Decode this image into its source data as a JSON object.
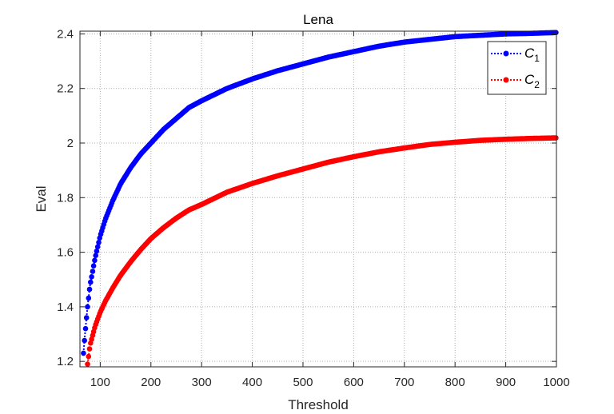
{
  "chart_data": {
    "type": "line",
    "title": "Lena",
    "xlabel": "Threshold",
    "ylabel": "Eval",
    "xlim": [
      60,
      1000
    ],
    "ylim": [
      1.18,
      2.41
    ],
    "xticks": [
      100,
      200,
      300,
      400,
      500,
      600,
      700,
      800,
      900,
      1000
    ],
    "yticks": [
      1.2,
      1.4,
      1.6,
      1.8,
      2.0,
      2.2,
      2.4
    ],
    "xtick_labels": [
      "100",
      "200",
      "300",
      "400",
      "500",
      "600",
      "700",
      "800",
      "900",
      "1000"
    ],
    "ytick_labels": [
      "1.2",
      "1.4",
      "1.6",
      "1.8",
      "2",
      "2.2",
      "2.4"
    ],
    "grid": true,
    "legend_position": "top-right",
    "series": [
      {
        "name": "C",
        "subscript": "1",
        "color": "#0000ff",
        "x": [
          67,
          70,
          75,
          80,
          90,
          100,
          110,
          125,
          140,
          160,
          180,
          200,
          225,
          250,
          275,
          300,
          350,
          400,
          450,
          500,
          550,
          600,
          650,
          700,
          750,
          800,
          850,
          900,
          950,
          1000
        ],
        "y": [
          1.23,
          1.3,
          1.4,
          1.48,
          1.58,
          1.66,
          1.72,
          1.79,
          1.85,
          1.91,
          1.96,
          2.0,
          2.05,
          2.09,
          2.13,
          2.155,
          2.2,
          2.235,
          2.265,
          2.29,
          2.315,
          2.335,
          2.355,
          2.37,
          2.38,
          2.39,
          2.395,
          2.4,
          2.402,
          2.405
        ]
      },
      {
        "name": "C",
        "subscript": "2",
        "color": "#ff0000",
        "x": [
          75,
          80,
          90,
          100,
          110,
          125,
          140,
          160,
          180,
          200,
          225,
          250,
          275,
          300,
          350,
          400,
          450,
          500,
          550,
          600,
          650,
          700,
          750,
          800,
          850,
          900,
          950,
          1000
        ],
        "y": [
          1.19,
          1.26,
          1.33,
          1.38,
          1.42,
          1.47,
          1.515,
          1.565,
          1.61,
          1.65,
          1.69,
          1.725,
          1.755,
          1.775,
          1.82,
          1.852,
          1.88,
          1.905,
          1.93,
          1.95,
          1.968,
          1.982,
          1.995,
          2.003,
          2.01,
          2.014,
          2.017,
          2.019
        ]
      }
    ]
  }
}
